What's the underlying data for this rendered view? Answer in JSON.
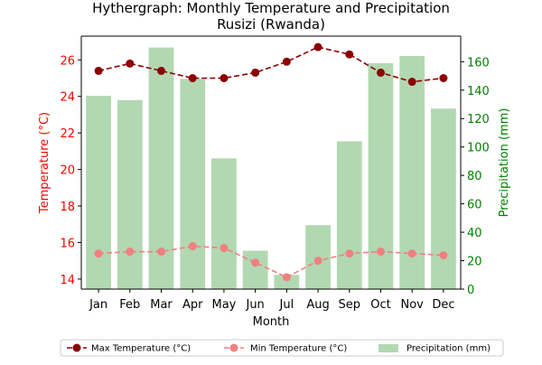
{
  "chart_data": {
    "type": "bar+line",
    "title_line1": "Hythergraph: Monthly Temperature and Precipitation",
    "title_line2": "Rusizi (Rwanda)",
    "xlabel": "Month",
    "ylabel_left": "Temperature (°C)",
    "ylabel_right": "Precipitation (mm)",
    "categories": [
      "Jan",
      "Feb",
      "Mar",
      "Apr",
      "May",
      "Jun",
      "Jul",
      "Aug",
      "Sep",
      "Oct",
      "Nov",
      "Dec"
    ],
    "y_left": {
      "min": 13.45,
      "max": 27.3,
      "ticks": [
        14,
        16,
        18,
        20,
        22,
        24,
        26
      ]
    },
    "y_right": {
      "min": 0,
      "max": 178,
      "ticks": [
        0,
        20,
        40,
        60,
        80,
        100,
        120,
        140,
        160
      ]
    },
    "series": [
      {
        "name": "Max Temperature (°C)",
        "kind": "line",
        "axis": "left",
        "color": "#8b0000",
        "values": [
          25.4,
          25.8,
          25.4,
          25.0,
          25.0,
          25.3,
          25.9,
          26.7,
          26.3,
          25.3,
          24.8,
          25.0
        ]
      },
      {
        "name": "Min Temperature (°C)",
        "kind": "line",
        "axis": "left",
        "color": "#f08080",
        "values": [
          15.4,
          15.5,
          15.5,
          15.8,
          15.7,
          14.9,
          14.1,
          15.0,
          15.4,
          15.5,
          15.4,
          15.3
        ]
      },
      {
        "name": "Precipitation (mm)",
        "kind": "bar",
        "axis": "right",
        "color": "#b2d8b2",
        "values": [
          136,
          133,
          170,
          148,
          92,
          27,
          10,
          45,
          104,
          159,
          164,
          127
        ]
      }
    ],
    "grid": false,
    "legend_position": "bottom"
  },
  "colors": {
    "left_axis": "#ff0000",
    "right_axis": "#008000",
    "axes": "#000000"
  }
}
